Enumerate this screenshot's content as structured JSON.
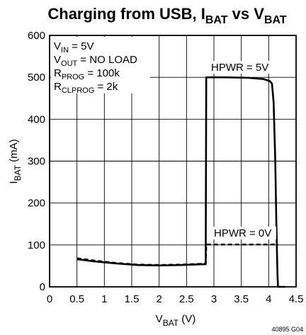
{
  "chart_data": {
    "type": "line",
    "title": {
      "main": "Charging from USB, I",
      "sub1": "BAT",
      "mid": " vs V",
      "sub2": "BAT"
    },
    "xlabel": {
      "main": "V",
      "sub": "BAT",
      "unit": " (V)"
    },
    "ylabel": {
      "main": "I",
      "sub": "BAT",
      "unit": " (mA)"
    },
    "xlim": [
      0,
      4.5
    ],
    "ylim": [
      0,
      600
    ],
    "x_ticks": [
      "0",
      "0.5",
      "1",
      "1.5",
      "2",
      "2.5",
      "3",
      "3.5",
      "4",
      "4.5"
    ],
    "y_ticks": [
      "0",
      "100",
      "200",
      "300",
      "400",
      "500",
      "600"
    ],
    "grid": true,
    "conditions": [
      {
        "main": "V",
        "sub": "IN",
        "rest": " = 5V"
      },
      {
        "main": "V",
        "sub": "OUT",
        "rest": " = NO LOAD"
      },
      {
        "main": "R",
        "sub": "PROG",
        "rest": " = 100k"
      },
      {
        "main": "R",
        "sub": "CLPROG",
        "rest": " = 2k"
      }
    ],
    "series": [
      {
        "name": "HPWR = 5V",
        "style": "solid",
        "x": [
          0.5,
          0.8,
          1.2,
          1.6,
          2.0,
          2.4,
          2.8,
          2.85,
          2.86,
          3.2,
          3.6,
          3.9,
          4.02,
          4.06,
          4.09,
          4.12,
          4.14,
          4.16,
          4.17,
          4.3
        ],
        "y": [
          66,
          61,
          56,
          52,
          51,
          52,
          54,
          54,
          500,
          500,
          499,
          496,
          491,
          485,
          440,
          300,
          150,
          30,
          0,
          0
        ]
      },
      {
        "name": "HPWR = 0V",
        "style": "dashed",
        "x": [
          0.5,
          0.8,
          1.2,
          1.6,
          2.0,
          2.4,
          2.8,
          2.85,
          2.86,
          3.5,
          4.1,
          4.17
        ],
        "y": [
          68,
          63,
          57,
          53,
          52,
          53,
          55,
          55,
          101,
          101,
          101,
          100
        ]
      }
    ],
    "figure_id": "40895 G04",
    "colors": {
      "line": "#000000",
      "grid": "#000000",
      "background": "#ffffff"
    }
  }
}
